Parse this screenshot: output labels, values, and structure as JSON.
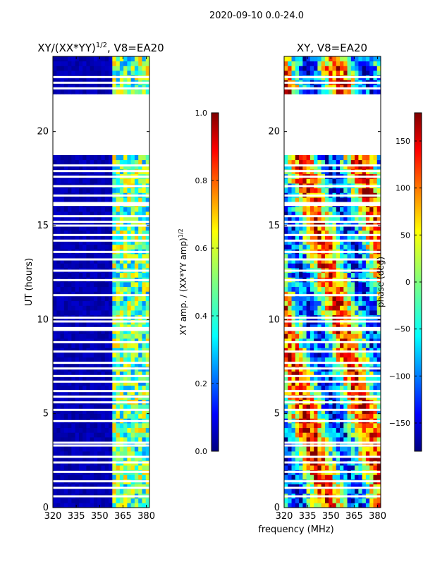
{
  "figure": {
    "suptitle": "2020-09-10 0.0-24.0",
    "xlabel": "frequency (MHz)"
  },
  "chart_data": [
    {
      "type": "heatmap",
      "title_main": "XY/(XX*YY)",
      "title_sup": "1/2",
      "title_rest": ", V8=EA20",
      "ylabel": "UT (hours)",
      "xlim": [
        320,
        382
      ],
      "ylim": [
        0,
        24
      ],
      "xticks": [
        320,
        335,
        350,
        365,
        380
      ],
      "yticks": [
        0,
        5,
        10,
        15,
        20
      ],
      "empty_ranges": [
        [
          18.7,
          21.9
        ]
      ],
      "gap_rows_ut": [
        0.6,
        1.05,
        1.4,
        1.9,
        2.4,
        2.7,
        3.3,
        3.45,
        4.6,
        5.2,
        5.6,
        5.9,
        6.2,
        6.7,
        7.0,
        7.4,
        7.7,
        8.3,
        8.8,
        9.45,
        9.55,
        9.9,
        10.1,
        11.3,
        12.1,
        12.6,
        13.2,
        13.6,
        14.2,
        14.5,
        15.0,
        15.2,
        15.5,
        16.1,
        16.2,
        16.6,
        17.1,
        17.6,
        17.9,
        18.2,
        22.3,
        22.6,
        22.9
      ],
      "bright_band_mhz": [
        359,
        381
      ],
      "colorbar": {
        "label_main": "XY amp. / (XX*YY amp)",
        "label_sup": "1/2",
        "min": 0.0,
        "max": 1.0,
        "ticks": [
          "0.0",
          "0.2",
          "0.4",
          "0.6",
          "0.8",
          "1.0"
        ]
      }
    },
    {
      "type": "heatmap",
      "title": "XY, V8=EA20",
      "xlim": [
        320,
        382
      ],
      "ylim": [
        0,
        24
      ],
      "xticks": [
        320,
        335,
        350,
        365,
        380
      ],
      "yticks": [
        0,
        5,
        10,
        15,
        20
      ],
      "empty_ranges": [
        [
          18.7,
          21.9
        ]
      ],
      "gap_rows_ut": [
        0.6,
        1.05,
        1.4,
        1.9,
        2.4,
        2.7,
        3.3,
        3.45,
        4.6,
        5.2,
        5.6,
        5.9,
        6.2,
        6.7,
        7.0,
        7.4,
        7.7,
        8.3,
        8.8,
        9.45,
        9.55,
        9.9,
        10.1,
        11.3,
        12.1,
        12.6,
        13.2,
        13.6,
        14.2,
        14.5,
        15.0,
        15.2,
        15.5,
        16.1,
        16.2,
        16.6,
        17.1,
        17.6,
        17.9,
        18.2,
        22.3,
        22.6,
        22.9
      ],
      "colorbar": {
        "label": "phase (deg)",
        "min": -180,
        "max": 180,
        "ticks": [
          "150",
          "100",
          "50",
          "0",
          "−50",
          "−100",
          "−150"
        ]
      }
    }
  ],
  "colors": {
    "jet": [
      "#00007f",
      "#0000ff",
      "#007fff",
      "#00ffff",
      "#7fff7f",
      "#ffff00",
      "#ff7f00",
      "#ff0000",
      "#7f0000"
    ]
  }
}
